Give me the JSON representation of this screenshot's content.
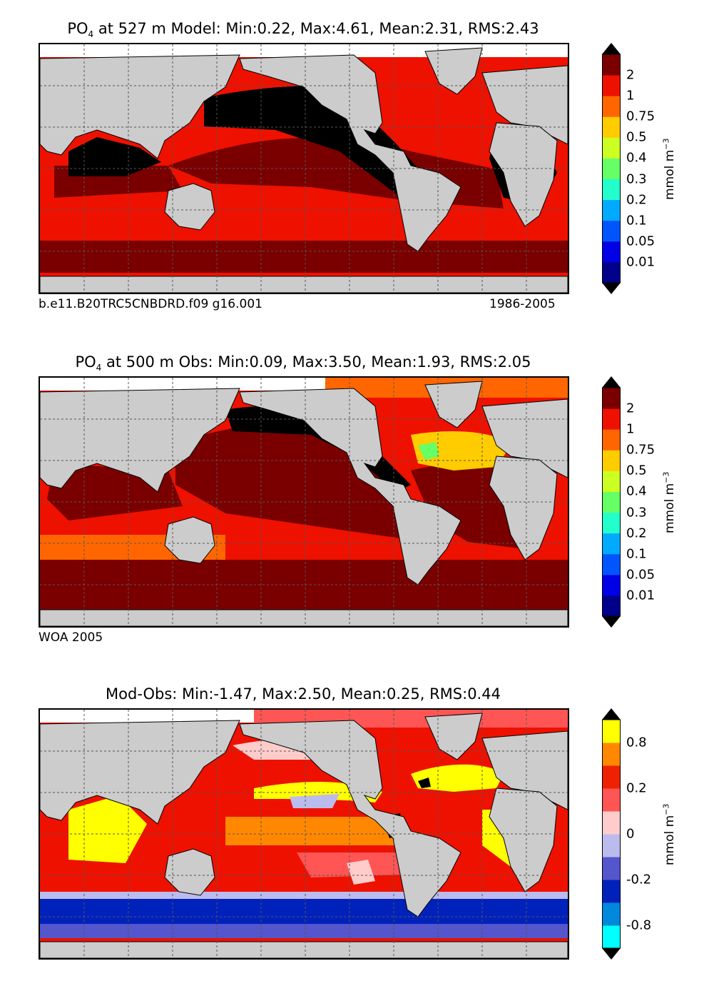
{
  "panels": [
    {
      "title_prefix": "PO",
      "title_sub": "4",
      "title_rest": " at 527 m Model: Min:0.22, Max:4.61, Mean:2.31, RMS:2.43",
      "caption_left": "b.e11.B20TRC5CNBDRD.f09 g16.001",
      "caption_right": "1986-2005",
      "colorbar": {
        "colors": [
          "#00008b",
          "#0000e6",
          "#0055ff",
          "#00aaff",
          "#22ffcc",
          "#66ff66",
          "#ccff22",
          "#ffcc00",
          "#ff6600",
          "#ee1100",
          "#7a0000"
        ],
        "ticks": [
          "0.01",
          "0.05",
          "0.1",
          "0.2",
          "0.3",
          "0.4",
          "0.5",
          "0.75",
          "1",
          "2"
        ],
        "unit": "mmol m",
        "unit_exp": "−3"
      }
    },
    {
      "title_prefix": "PO",
      "title_sub": "4",
      "title_rest": " at 500 m Obs: Min:0.09, Max:3.50, Mean:1.93, RMS:2.05",
      "caption_left": "WOA 2005",
      "caption_right": "",
      "colorbar": {
        "colors": [
          "#00008b",
          "#0000e6",
          "#0055ff",
          "#00aaff",
          "#22ffcc",
          "#66ff66",
          "#ccff22",
          "#ffcc00",
          "#ff6600",
          "#ee1100",
          "#7a0000"
        ],
        "ticks": [
          "0.01",
          "0.05",
          "0.1",
          "0.2",
          "0.3",
          "0.4",
          "0.5",
          "0.75",
          "1",
          "2"
        ],
        "unit": "mmol m",
        "unit_exp": "−3"
      }
    },
    {
      "title_prefix": "",
      "title_sub": "",
      "title_rest": "Mod-Obs: Min:-1.47, Max:2.50, Mean:0.25, RMS:0.44",
      "caption_left": "",
      "caption_right": "",
      "colorbar": {
        "colors": [
          "#00ffff",
          "#0088dd",
          "#0022bb",
          "#5555cc",
          "#bbbbee",
          "#ffcccc",
          "#ff5555",
          "#ee2200",
          "#ff8800",
          "#ffff00"
        ],
        "ticks": [
          "-0.8",
          "",
          "-0.2",
          "",
          "0",
          "",
          "0.2",
          "",
          "0.8"
        ],
        "unit": "mmol m",
        "unit_exp": "−3"
      }
    }
  ],
  "colors": {
    "land": "#cccccc",
    "coast": "#000000",
    "grid": "#555555",
    "ocean_black": "#000000"
  }
}
